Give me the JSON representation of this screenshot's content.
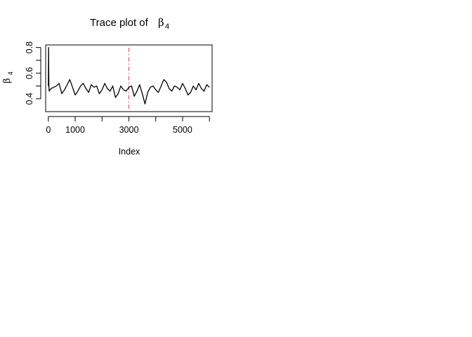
{
  "chart_data": {
    "type": "line",
    "title": "Trace plot of",
    "title_symbol": "β",
    "title_subscript": "4",
    "xlabel": "Index",
    "ylabel_symbol": "β",
    "ylabel_subscript": "4",
    "xlim": [
      -100,
      6100
    ],
    "ylim": [
      0.3,
      0.82
    ],
    "x_ticks": [
      0,
      1000,
      2000,
      3000,
      4000,
      5000,
      6000
    ],
    "x_tick_labels": [
      "0",
      "1000",
      "",
      "3000",
      "",
      "5000",
      ""
    ],
    "y_ticks": [
      0.4,
      0.5,
      0.6,
      0.7,
      0.8
    ],
    "y_tick_labels": [
      "0.4",
      "",
      "0.6",
      "",
      "0.8"
    ],
    "reference_line": {
      "x": 3000,
      "style": "dashdot",
      "color": "#df536b"
    },
    "series": [
      {
        "color": "#000000",
        "x": [
          0,
          10,
          20,
          30,
          100,
          200,
          300,
          400,
          500,
          600,
          700,
          800,
          900,
          1000,
          1100,
          1200,
          1300,
          1400,
          1500,
          1600,
          1700,
          1800,
          1900,
          2000,
          2100,
          2200,
          2300,
          2400,
          2500,
          2600,
          2700,
          2800,
          2900,
          3000,
          3100,
          3200,
          3300,
          3400,
          3500,
          3600,
          3700,
          3800,
          3900,
          4000,
          4100,
          4200,
          4300,
          4400,
          4500,
          4600,
          4700,
          4800,
          4900,
          5000,
          5100,
          5200,
          5300,
          5400,
          5500,
          5600,
          5700,
          5800,
          5900,
          6000
        ],
        "y": [
          0.5,
          0.8,
          0.5,
          0.46,
          0.48,
          0.49,
          0.5,
          0.52,
          0.44,
          0.47,
          0.51,
          0.55,
          0.49,
          0.43,
          0.46,
          0.5,
          0.52,
          0.48,
          0.45,
          0.51,
          0.49,
          0.5,
          0.44,
          0.47,
          0.52,
          0.48,
          0.46,
          0.5,
          0.41,
          0.44,
          0.5,
          0.47,
          0.46,
          0.49,
          0.5,
          0.42,
          0.46,
          0.51,
          0.44,
          0.36,
          0.45,
          0.49,
          0.5,
          0.47,
          0.45,
          0.5,
          0.55,
          0.53,
          0.48,
          0.46,
          0.5,
          0.49,
          0.47,
          0.52,
          0.48,
          0.43,
          0.45,
          0.5,
          0.47,
          0.52,
          0.48,
          0.46,
          0.51,
          0.49
        ]
      }
    ]
  }
}
